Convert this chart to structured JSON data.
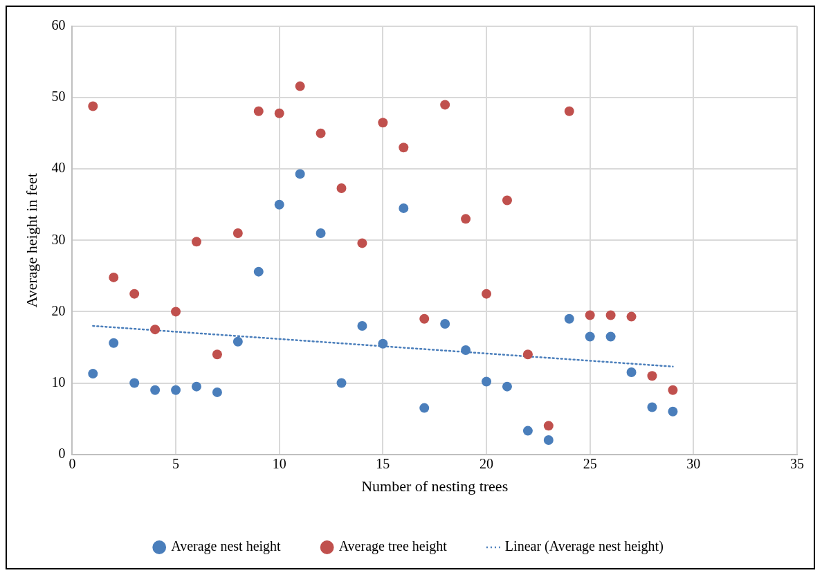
{
  "chart_data": {
    "type": "scatter",
    "xlabel": "Number of nesting trees",
    "ylabel": "Average height in feet",
    "x": [
      1,
      2,
      3,
      4,
      5,
      6,
      7,
      8,
      9,
      10,
      11,
      12,
      13,
      14,
      15,
      16,
      17,
      18,
      19,
      20,
      21,
      22,
      23,
      24,
      25,
      26,
      27,
      28,
      29
    ],
    "series": [
      {
        "name": "Average nest height",
        "color": "#4a7ebb",
        "values": [
          11.3,
          15.6,
          10.0,
          9.0,
          9.0,
          9.5,
          8.7,
          15.8,
          25.6,
          35.0,
          39.3,
          31.0,
          10.0,
          18.0,
          15.5,
          34.5,
          6.5,
          18.3,
          14.6,
          10.2,
          9.5,
          3.3,
          2.0,
          19.0,
          16.5,
          16.5,
          11.5,
          6.6,
          6.0
        ]
      },
      {
        "name": "Average tree height",
        "color": "#c0504d",
        "values": [
          48.8,
          24.8,
          22.5,
          17.5,
          20.0,
          29.8,
          14.0,
          31.0,
          48.1,
          47.8,
          51.6,
          45.0,
          37.3,
          29.6,
          46.5,
          43.0,
          19.0,
          49.0,
          33.0,
          22.5,
          35.6,
          14.0,
          4.0,
          48.1,
          19.5,
          19.5,
          19.3,
          11.0,
          9.0
        ]
      },
      {
        "name": "Linear (Average nest height)",
        "type": "line",
        "color": "#4a7ebb",
        "line_style": "dotted",
        "marker": "none",
        "x": [
          1,
          29
        ],
        "values": [
          18.0,
          12.3
        ]
      }
    ],
    "marker": "circle",
    "xlim": [
      0,
      35
    ],
    "xticks": [
      0,
      5,
      10,
      15,
      20,
      25,
      30,
      35
    ],
    "ylim": [
      0,
      60
    ],
    "yticks": [
      0,
      10,
      20,
      30,
      40,
      50,
      60
    ],
    "grid": true,
    "legend": "bottom"
  }
}
